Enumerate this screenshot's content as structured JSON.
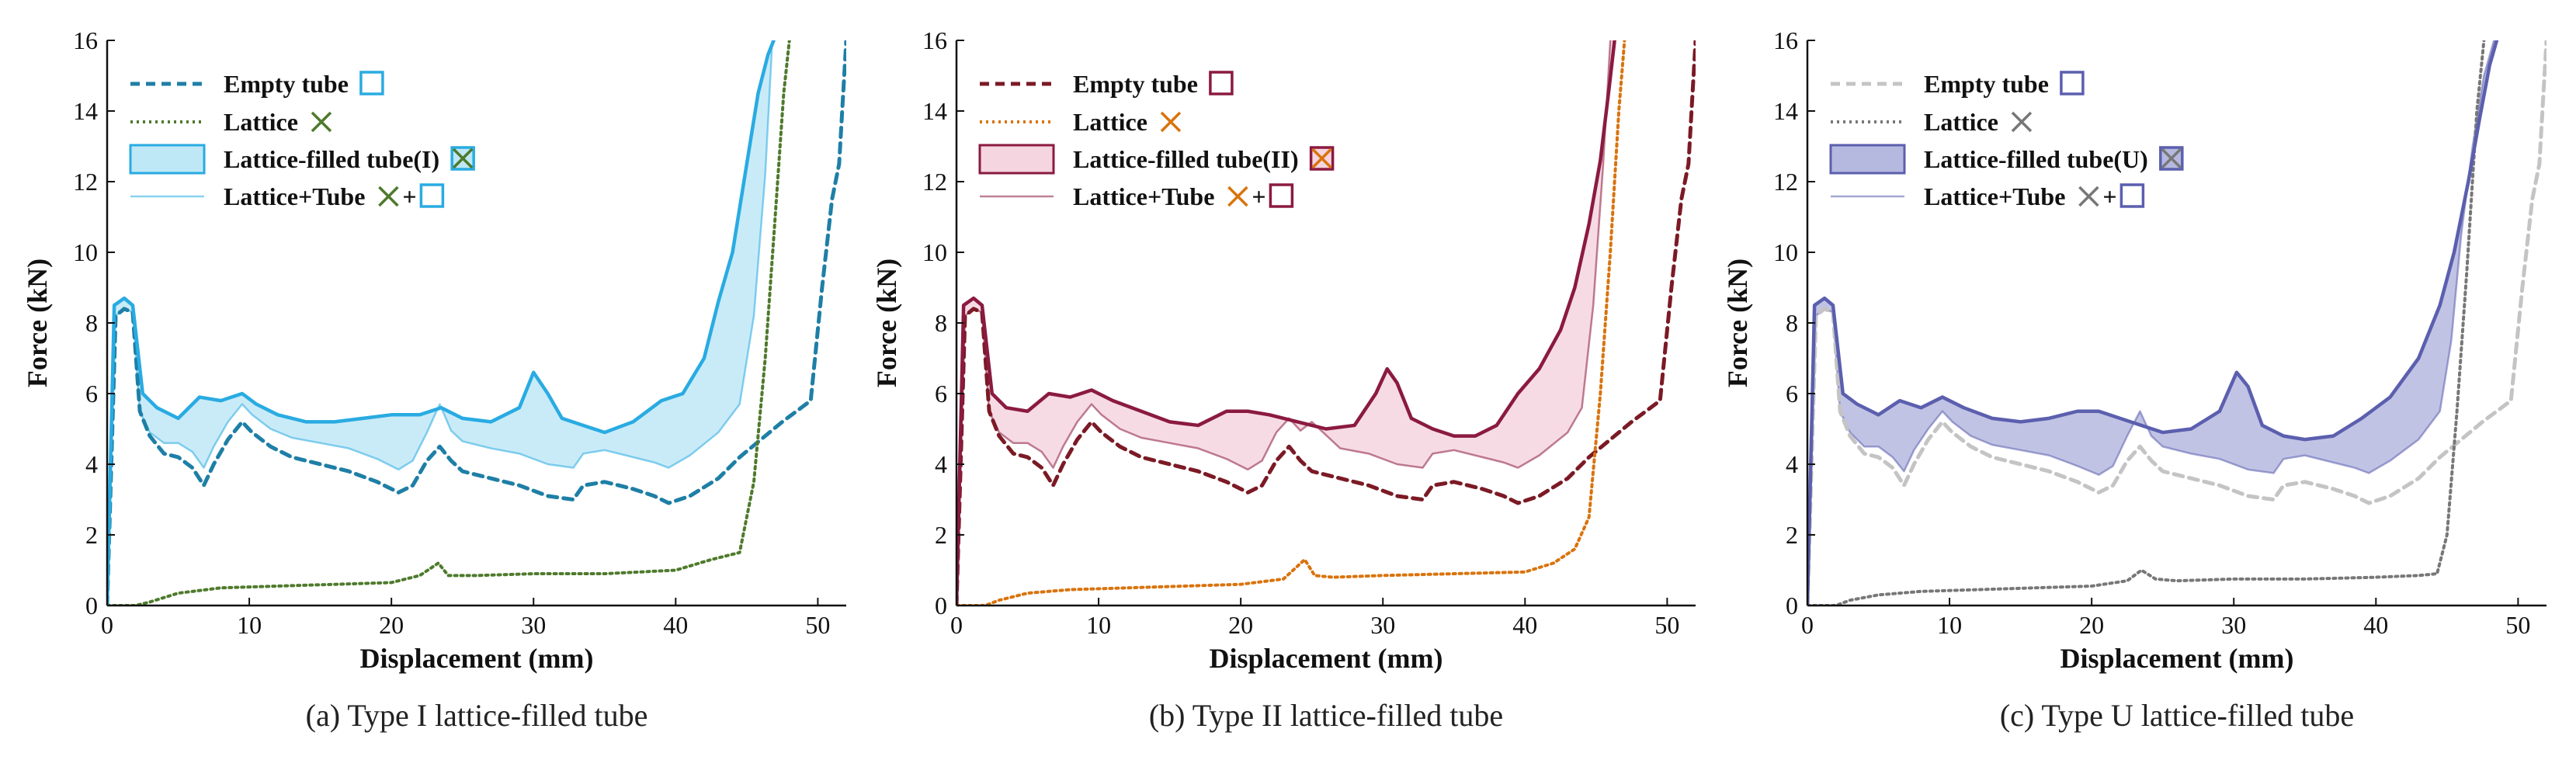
{
  "figure": {
    "panels_count": 3
  },
  "chart_data": [
    {
      "type": "line",
      "panel": "a",
      "caption": "(a) Type I lattice-filled tube",
      "xlabel": "Displacement (mm)",
      "ylabel": "Force (kN)",
      "xlim": [
        0,
        52
      ],
      "ylim": [
        0,
        16
      ],
      "xticks": [
        0,
        10,
        20,
        30,
        40,
        50
      ],
      "yticks": [
        0,
        2,
        4,
        6,
        8,
        10,
        12,
        14,
        16
      ],
      "colors": {
        "main": "#29ABE2",
        "fill": "#BFE8F7",
        "lattice": "#4E7A2C",
        "empty": "#1E7FA6"
      },
      "legend": {
        "position": "top-left",
        "entries": [
          {
            "label": "Empty tube",
            "symbol": "square"
          },
          {
            "label": "Lattice",
            "symbol": "cross"
          },
          {
            "label": "Lattice-filled tube(I)",
            "symbol": "crossed-square"
          },
          {
            "label": "Lattice+Tube",
            "symbol": "cross-plus-square"
          }
        ]
      },
      "series": [
        {
          "name": "Empty tube",
          "style": "dashed",
          "x": [
            0,
            0.6,
            1.2,
            1.8,
            2.3,
            3,
            4,
            5,
            6,
            6.8,
            7.5,
            8.5,
            9.5,
            10.2,
            11.5,
            13,
            15,
            17,
            19,
            20.5,
            21.5,
            22.5,
            23.4,
            24.2,
            25,
            27,
            29,
            31,
            32.8,
            33.5,
            35,
            37,
            38.5,
            39.5,
            41,
            43,
            44.5,
            46,
            47.5,
            48.5,
            49.5,
            50.3,
            51,
            51.5,
            52
          ],
          "y": [
            0,
            8.2,
            8.4,
            8.3,
            5.5,
            4.8,
            4.3,
            4.2,
            3.9,
            3.4,
            4.0,
            4.7,
            5.2,
            4.9,
            4.5,
            4.2,
            4.0,
            3.8,
            3.5,
            3.2,
            3.4,
            4.1,
            4.5,
            4.1,
            3.8,
            3.6,
            3.4,
            3.1,
            3.0,
            3.4,
            3.5,
            3.3,
            3.1,
            2.9,
            3.1,
            3.6,
            4.2,
            4.7,
            5.2,
            5.5,
            5.8,
            9.0,
            11.5,
            12.5,
            16
          ]
        },
        {
          "name": "Lattice",
          "style": "dotted",
          "x": [
            0,
            2,
            3,
            5,
            8,
            12,
            16,
            20,
            22,
            23.3,
            24,
            26,
            30,
            35,
            40,
            42.5,
            44.5,
            45.5,
            46.3,
            47,
            47.6,
            48.0
          ],
          "y": [
            0,
            0,
            0.1,
            0.35,
            0.5,
            0.55,
            0.6,
            0.65,
            0.85,
            1.2,
            0.85,
            0.85,
            0.9,
            0.9,
            1.0,
            1.3,
            1.5,
            3.5,
            7,
            11,
            14.5,
            16
          ]
        },
        {
          "name": "Lattice-filled tube(I)",
          "style": "solid",
          "x": [
            0,
            0.5,
            1.2,
            1.8,
            2.5,
            3.5,
            5,
            6.5,
            8,
            9.5,
            10.5,
            12,
            14,
            16,
            18,
            20,
            22,
            23.5,
            25,
            27,
            29,
            30,
            31,
            32,
            33.5,
            35,
            37,
            39,
            40.5,
            42,
            43,
            44,
            45,
            45.8,
            46.5,
            46.9
          ],
          "y": [
            0,
            8.5,
            8.7,
            8.5,
            6.0,
            5.6,
            5.3,
            5.9,
            5.8,
            6.0,
            5.7,
            5.4,
            5.2,
            5.2,
            5.3,
            5.4,
            5.4,
            5.6,
            5.3,
            5.2,
            5.6,
            6.6,
            6.0,
            5.3,
            5.1,
            4.9,
            5.2,
            5.8,
            6.0,
            7.0,
            8.6,
            10.0,
            12.5,
            14.5,
            15.6,
            16
          ]
        },
        {
          "name": "Lattice+Tube",
          "style": "solid-thin",
          "x": [
            0,
            0.6,
            1.2,
            1.8,
            2.3,
            3,
            4,
            5,
            6,
            6.8,
            7.5,
            8.5,
            9.5,
            10.2,
            11.5,
            13,
            15,
            17,
            19,
            20.5,
            21.5,
            22.5,
            23.4,
            24.2,
            25,
            27,
            29,
            31,
            32.8,
            33.5,
            35,
            37,
            38.5,
            39.5,
            41,
            43,
            44.5,
            45.5,
            46.3,
            46.8
          ],
          "y": [
            0,
            8.2,
            8.4,
            8.3,
            5.5,
            4.9,
            4.6,
            4.6,
            4.35,
            3.9,
            4.5,
            5.2,
            5.7,
            5.4,
            5.0,
            4.75,
            4.6,
            4.45,
            4.15,
            3.85,
            4.1,
            4.9,
            5.7,
            4.95,
            4.65,
            4.45,
            4.3,
            4.0,
            3.9,
            4.3,
            4.4,
            4.2,
            4.05,
            3.9,
            4.25,
            4.9,
            5.7,
            8.2,
            12.2,
            16
          ]
        }
      ]
    },
    {
      "type": "line",
      "panel": "b",
      "caption": "(b) Type II lattice-filled tube",
      "xlabel": "Displacement (mm)",
      "ylabel": "Force (kN)",
      "xlim": [
        0,
        52
      ],
      "ylim": [
        0,
        16
      ],
      "xticks": [
        0,
        10,
        20,
        30,
        40,
        50
      ],
      "yticks": [
        0,
        2,
        4,
        6,
        8,
        10,
        12,
        14,
        16
      ],
      "colors": {
        "main": "#8B1A40",
        "fill": "#F5D5E0",
        "lattice": "#D9730D",
        "empty": "#7B1A25"
      },
      "legend": {
        "position": "top-left",
        "entries": [
          {
            "label": "Empty tube",
            "symbol": "square"
          },
          {
            "label": "Lattice",
            "symbol": "cross"
          },
          {
            "label": "Lattice-filled tube(II)",
            "symbol": "crossed-square"
          },
          {
            "label": "Lattice+Tube",
            "symbol": "cross-plus-square"
          }
        ]
      },
      "series": [
        {
          "name": "Empty tube",
          "style": "dashed",
          "x": [
            0,
            0.6,
            1.2,
            1.8,
            2.3,
            3,
            4,
            5,
            6,
            6.8,
            7.5,
            8.5,
            9.5,
            10.2,
            11.5,
            13,
            15,
            17,
            19,
            20.5,
            21.5,
            22.5,
            23.4,
            24.2,
            25,
            27,
            29,
            31,
            32.8,
            33.5,
            35,
            37,
            38.5,
            39.5,
            41,
            43,
            44.5,
            46,
            47.5,
            48.5,
            49.5,
            50.3,
            51,
            51.5,
            52
          ],
          "y": [
            0,
            8.2,
            8.4,
            8.3,
            5.5,
            4.8,
            4.3,
            4.2,
            3.9,
            3.4,
            4.0,
            4.7,
            5.2,
            4.9,
            4.5,
            4.2,
            4.0,
            3.8,
            3.5,
            3.2,
            3.4,
            4.1,
            4.5,
            4.1,
            3.8,
            3.6,
            3.4,
            3.1,
            3.0,
            3.4,
            3.5,
            3.3,
            3.1,
            2.9,
            3.1,
            3.6,
            4.2,
            4.7,
            5.2,
            5.5,
            5.8,
            9.0,
            11.5,
            12.5,
            16
          ]
        },
        {
          "name": "Lattice",
          "style": "dotted",
          "x": [
            0,
            2,
            3,
            5,
            8,
            12,
            16,
            20,
            23,
            24.5,
            25.2,
            26.5,
            30,
            35,
            40,
            42,
            43.5,
            44.5,
            45.3,
            46,
            46.6,
            47.0
          ],
          "y": [
            0,
            0,
            0.15,
            0.35,
            0.45,
            0.5,
            0.55,
            0.6,
            0.75,
            1.3,
            0.85,
            0.8,
            0.85,
            0.9,
            0.95,
            1.2,
            1.6,
            2.5,
            6,
            10,
            14,
            16
          ]
        },
        {
          "name": "Lattice-filled tube(II)",
          "style": "solid",
          "x": [
            0,
            0.5,
            1.2,
            1.8,
            2.5,
            3.5,
            5,
            6.5,
            8,
            9.5,
            11,
            13,
            15,
            17,
            19,
            20.5,
            22,
            24,
            26,
            28,
            29.5,
            30.3,
            31,
            32,
            33.5,
            35,
            36.5,
            38,
            39.5,
            41,
            42.5,
            43.5,
            44.5,
            45.3,
            45.9,
            46.3
          ],
          "y": [
            0,
            8.5,
            8.7,
            8.5,
            6.0,
            5.6,
            5.5,
            6.0,
            5.9,
            6.1,
            5.8,
            5.5,
            5.2,
            5.1,
            5.5,
            5.5,
            5.4,
            5.2,
            5.0,
            5.1,
            6.0,
            6.7,
            6.3,
            5.3,
            5.0,
            4.8,
            4.8,
            5.1,
            6.0,
            6.7,
            7.8,
            9.0,
            10.8,
            12.6,
            14.6,
            16
          ]
        },
        {
          "name": "Lattice+Tube",
          "style": "solid-thin",
          "x": [
            0,
            0.6,
            1.2,
            1.8,
            2.3,
            3,
            4,
            5,
            6,
            6.8,
            7.5,
            8.5,
            9.5,
            10.2,
            11.5,
            13,
            15,
            17,
            19,
            20.5,
            21.5,
            22.5,
            23.4,
            24.2,
            25,
            27,
            29,
            31,
            32.8,
            33.5,
            35,
            37,
            38.5,
            39.5,
            41,
            43,
            44.0,
            44.8,
            45.5,
            46.0
          ],
          "y": [
            0,
            8.2,
            8.4,
            8.3,
            5.5,
            4.9,
            4.6,
            4.6,
            4.35,
            3.9,
            4.5,
            5.2,
            5.7,
            5.4,
            5.0,
            4.75,
            4.6,
            4.45,
            4.15,
            3.85,
            4.1,
            4.9,
            5.3,
            4.95,
            5.2,
            4.45,
            4.3,
            4.0,
            3.9,
            4.3,
            4.4,
            4.2,
            4.05,
            3.9,
            4.25,
            4.9,
            5.6,
            8.5,
            12.5,
            16
          ]
        }
      ]
    },
    {
      "type": "line",
      "panel": "c",
      "caption": "(c) Type U lattice-filled tube",
      "xlabel": "Displacement (mm)",
      "ylabel": "Force (kN)",
      "xlim": [
        0,
        52
      ],
      "ylim": [
        0,
        16
      ],
      "xticks": [
        0,
        10,
        20,
        30,
        40,
        50
      ],
      "yticks": [
        0,
        2,
        4,
        6,
        8,
        10,
        12,
        14,
        16
      ],
      "colors": {
        "main": "#5B5FAE",
        "fill": "#B6B9DF",
        "lattice": "#777777",
        "empty": "#C4C4C4"
      },
      "legend": {
        "position": "top-left",
        "entries": [
          {
            "label": "Empty tube",
            "symbol": "square"
          },
          {
            "label": "Lattice",
            "symbol": "cross"
          },
          {
            "label": "Lattice-filled tube(U)",
            "symbol": "crossed-square"
          },
          {
            "label": "Lattice+Tube",
            "symbol": "cross-plus-square"
          }
        ]
      },
      "series": [
        {
          "name": "Empty tube",
          "style": "dashed",
          "x": [
            0,
            0.6,
            1.2,
            1.8,
            2.3,
            3,
            4,
            5,
            6,
            6.8,
            7.5,
            8.5,
            9.5,
            10.2,
            11.5,
            13,
            15,
            17,
            19,
            20.5,
            21.5,
            22.5,
            23.4,
            24.2,
            25,
            27,
            29,
            31,
            32.8,
            33.5,
            35,
            37,
            38.5,
            39.5,
            41,
            43,
            44.5,
            46,
            47.5,
            48.5,
            49.5,
            50.3,
            51,
            51.5,
            52
          ],
          "y": [
            0,
            8.2,
            8.4,
            8.3,
            5.5,
            4.8,
            4.3,
            4.2,
            3.9,
            3.4,
            4.0,
            4.7,
            5.2,
            4.9,
            4.5,
            4.2,
            4.0,
            3.8,
            3.5,
            3.2,
            3.4,
            4.1,
            4.5,
            4.1,
            3.8,
            3.6,
            3.4,
            3.1,
            3.0,
            3.4,
            3.5,
            3.3,
            3.1,
            2.9,
            3.1,
            3.6,
            4.2,
            4.7,
            5.2,
            5.5,
            5.8,
            9.0,
            11.5,
            12.5,
            16
          ]
        },
        {
          "name": "Lattice",
          "style": "dotted",
          "x": [
            0,
            2,
            3,
            5,
            8,
            12,
            16,
            20,
            22.5,
            23.5,
            24.5,
            26,
            30,
            35,
            40,
            43,
            44.3,
            45,
            45.7,
            46.4,
            47.1,
            47.6
          ],
          "y": [
            0,
            0,
            0.15,
            0.3,
            0.4,
            0.45,
            0.5,
            0.55,
            0.7,
            1.0,
            0.75,
            0.7,
            0.75,
            0.75,
            0.8,
            0.85,
            0.9,
            2.0,
            5.5,
            9.5,
            14,
            16
          ]
        },
        {
          "name": "Lattice-filled tube(U)",
          "style": "solid",
          "x": [
            0,
            0.5,
            1.2,
            1.8,
            2.5,
            3.5,
            5,
            6.5,
            8,
            9.5,
            11,
            13,
            15,
            17,
            19,
            20.5,
            22,
            23.5,
            25,
            27,
            29,
            30.2,
            31,
            32,
            33.5,
            35,
            37,
            39,
            41,
            43,
            44.5,
            45.5,
            46.5,
            47.3,
            48.0,
            48.5
          ],
          "y": [
            0,
            8.5,
            8.7,
            8.5,
            6.0,
            5.7,
            5.4,
            5.8,
            5.6,
            5.9,
            5.6,
            5.3,
            5.2,
            5.3,
            5.5,
            5.5,
            5.3,
            5.1,
            4.9,
            5.0,
            5.5,
            6.6,
            6.2,
            5.1,
            4.8,
            4.7,
            4.8,
            5.3,
            5.9,
            7.0,
            8.5,
            10.0,
            12.0,
            13.8,
            15.3,
            16
          ]
        },
        {
          "name": "Lattice+Tube",
          "style": "solid-thin",
          "x": [
            0,
            0.6,
            1.2,
            1.8,
            2.3,
            3,
            4,
            5,
            6,
            6.8,
            7.5,
            8.5,
            9.5,
            10.2,
            11.5,
            13,
            15,
            17,
            19,
            20.5,
            21.5,
            22.5,
            23.4,
            24.2,
            25,
            27,
            29,
            31,
            32.8,
            33.5,
            35,
            37,
            38.5,
            39.5,
            41,
            43,
            44.5,
            45.3,
            46.0,
            46.8,
            47.6,
            48.3
          ],
          "y": [
            0,
            8.2,
            8.4,
            8.3,
            5.5,
            4.9,
            4.5,
            4.5,
            4.2,
            3.8,
            4.4,
            5.0,
            5.5,
            5.2,
            4.8,
            4.55,
            4.4,
            4.25,
            3.95,
            3.7,
            3.95,
            4.8,
            5.5,
            4.8,
            4.5,
            4.3,
            4.15,
            3.85,
            3.75,
            4.15,
            4.25,
            4.05,
            3.9,
            3.75,
            4.1,
            4.7,
            5.5,
            7.5,
            10.5,
            13.0,
            15.0,
            16
          ]
        }
      ]
    }
  ]
}
